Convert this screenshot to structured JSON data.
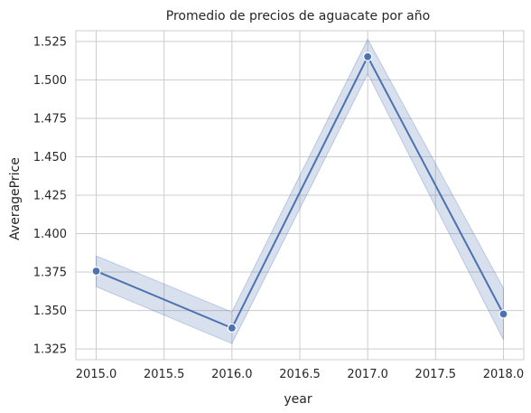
{
  "chart_data": {
    "type": "line",
    "title": "Promedio de precios de aguacate por año",
    "xlabel": "year",
    "ylabel": "AveragePrice",
    "xlim": [
      2014.85,
      2018.15
    ],
    "ylim": [
      1.318,
      1.532
    ],
    "xticks": [
      2015.0,
      2015.5,
      2016.0,
      2016.5,
      2017.0,
      2017.5,
      2018.0
    ],
    "xtick_labels": [
      "2015.0",
      "2015.5",
      "2016.0",
      "2016.5",
      "2017.0",
      "2017.5",
      "2018.0"
    ],
    "yticks": [
      1.325,
      1.35,
      1.375,
      1.4,
      1.425,
      1.45,
      1.475,
      1.5,
      1.525
    ],
    "ytick_labels": [
      "1.325",
      "1.350",
      "1.375",
      "1.400",
      "1.425",
      "1.450",
      "1.475",
      "1.500",
      "1.525"
    ],
    "grid": true,
    "series": [
      {
        "x": [
          2015,
          2016,
          2017,
          2018
        ],
        "y": [
          1.3756,
          1.3386,
          1.5151,
          1.3477
        ],
        "ci_lower": [
          1.3655,
          1.3285,
          1.504,
          1.331
        ],
        "ci_upper": [
          1.3855,
          1.349,
          1.5265,
          1.3645
        ],
        "color": "#4c72b0",
        "marker": "circle"
      }
    ]
  }
}
